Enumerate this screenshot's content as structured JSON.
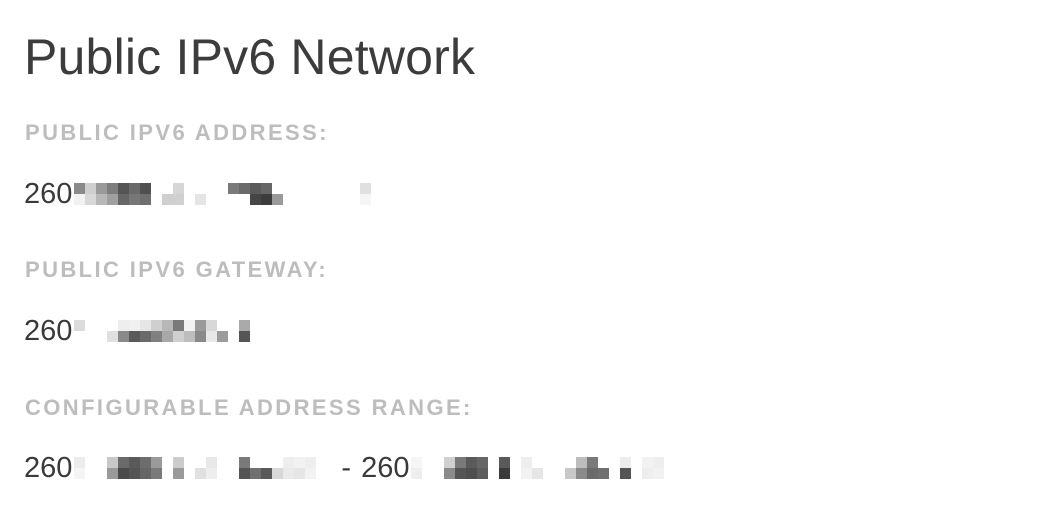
{
  "section": {
    "title": "Public IPv6 Network"
  },
  "fields": {
    "address": {
      "label": "PUBLIC IPV6 ADDRESS:",
      "value_prefix": "260",
      "value_redacted": true
    },
    "gateway": {
      "label": "PUBLIC IPV6 GATEWAY:",
      "value_prefix": "260",
      "value_redacted": true
    },
    "range": {
      "label": "CONFIGURABLE ADDRESS RANGE:",
      "start_prefix": "260",
      "separator": "-",
      "end_prefix": "260",
      "value_redacted": true
    }
  },
  "colors": {
    "title": "#3c3c3c",
    "label": "#bdbdbd",
    "value": "#3a3a3a"
  }
}
